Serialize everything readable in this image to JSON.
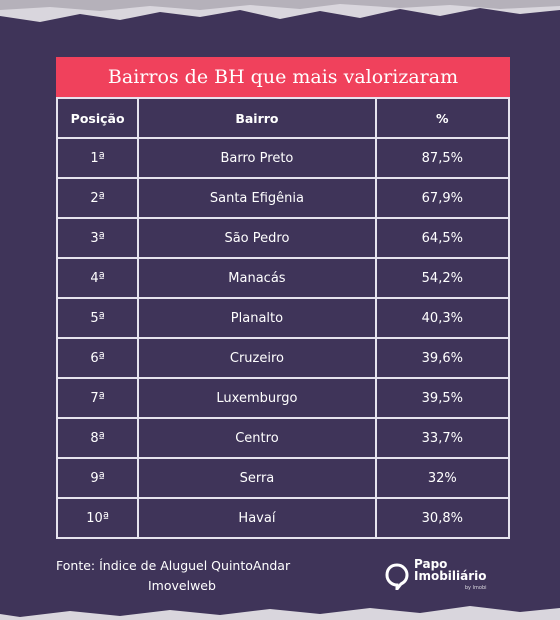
{
  "title": "Bairros de BH que mais valorizaram",
  "columns": [
    "Posição",
    "Bairro",
    "%"
  ],
  "rows": [
    {
      "pos": "1ª",
      "bairro": "Barro Preto",
      "pct": "87,5%"
    },
    {
      "pos": "2ª",
      "bairro": "Santa Efigênia",
      "pct": "67,9%"
    },
    {
      "pos": "3ª",
      "bairro": "São Pedro",
      "pct": "64,5%"
    },
    {
      "pos": "4ª",
      "bairro": "Manacás",
      "pct": "54,2%"
    },
    {
      "pos": "5ª",
      "bairro": "Planalto",
      "pct": "40,3%"
    },
    {
      "pos": "6ª",
      "bairro": "Cruzeiro",
      "pct": "39,6%"
    },
    {
      "pos": "7ª",
      "bairro": "Luxemburgo",
      "pct": "39,5%"
    },
    {
      "pos": "8ª",
      "bairro": "Centro",
      "pct": "33,7%"
    },
    {
      "pos": "9ª",
      "bairro": "Serra",
      "pct": "32%"
    },
    {
      "pos": "10ª",
      "bairro": "Havaí",
      "pct": "30,8%"
    }
  ],
  "source": {
    "line1": "Fonte:  Índice de Aluguel QuintoAndar",
    "line2": "Imovelweb"
  },
  "logo": {
    "line1": "Papo",
    "line2": "Imobiliário",
    "tagline": "by Imobi",
    "icon": "papo-imobiliario-logo-icon"
  },
  "colors": {
    "background": "#3f3459",
    "title_bar": "#f0415c",
    "grid_lines": "#e6e3ee",
    "text": "#ffffff"
  }
}
